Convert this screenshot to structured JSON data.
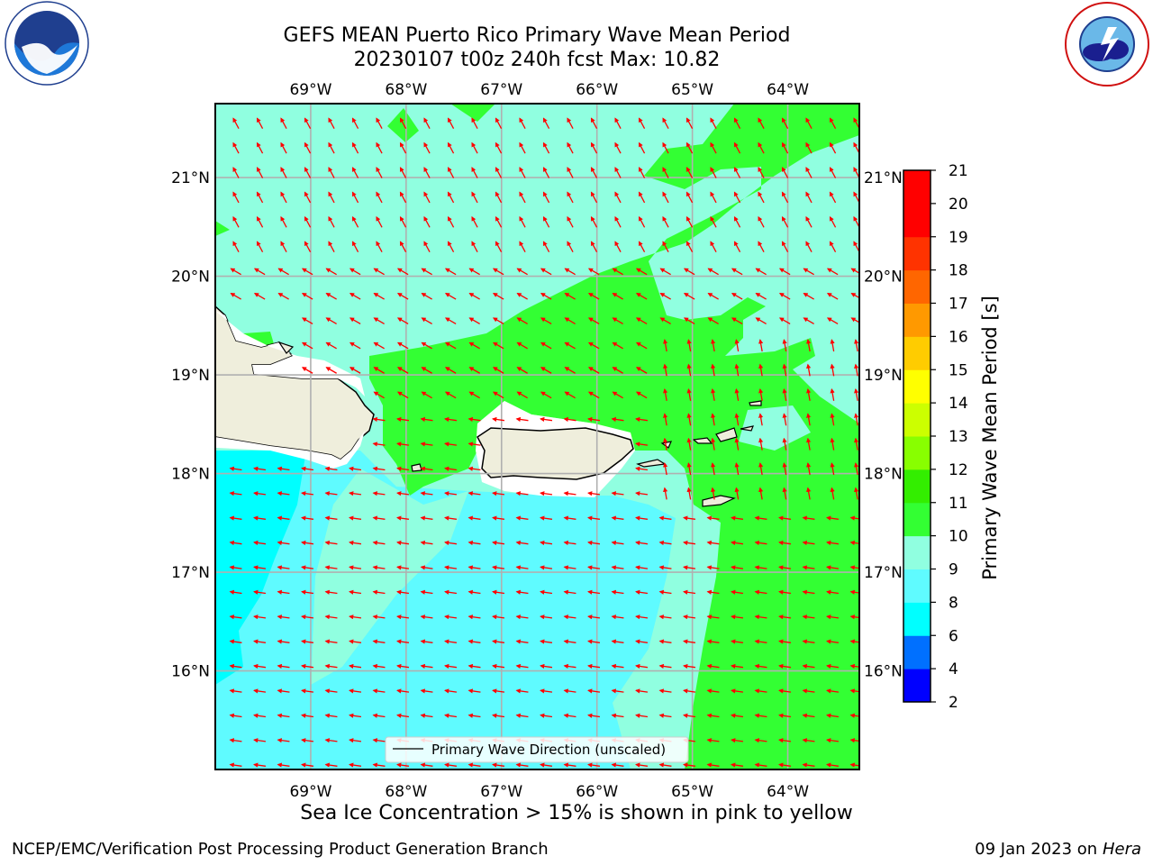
{
  "title": {
    "line1": "GEFS MEAN Puerto Rico Primary Wave Mean Period",
    "line2": "20230107 t00z 240h fcst   Max: 10.82"
  },
  "logos": {
    "left": "noaa-logo",
    "right": "national-weather-service-logo"
  },
  "chart_data": {
    "type": "heatmap",
    "field": "primary wave mean period",
    "lon_range": [
      -70.0,
      -63.25
    ],
    "lat_range": [
      15.0,
      21.75
    ],
    "lon_ticks": [
      "69°W",
      "68°W",
      "67°W",
      "66°W",
      "65°W",
      "64°W"
    ],
    "lon_tick_values": [
      -69,
      -68,
      -67,
      -66,
      -65,
      -64
    ],
    "lat_ticks": [
      "16°N",
      "17°N",
      "18°N",
      "19°N",
      "20°N",
      "21°N"
    ],
    "lat_tick_values": [
      16,
      17,
      18,
      19,
      20,
      21
    ],
    "grid": true,
    "legend": {
      "label": "Primary Wave Direction (unscaled)",
      "position": "bottom-center"
    },
    "vector_color": "#ff0000",
    "vector_direction": "toward west-northwest",
    "colorbar": {
      "label": "Primary Wave Mean Period [s]",
      "ticks": [
        "2",
        "4",
        "6",
        "8",
        "9",
        "10",
        "11",
        "12",
        "13",
        "14",
        "15",
        "16",
        "17",
        "18",
        "19",
        "20",
        "21"
      ],
      "colors": [
        "#0000ff",
        "#0070ff",
        "#00ffff",
        "#5ffbff",
        "#90ffe0",
        "#33ff33",
        "#33ee00",
        "#88ff00",
        "#ccff00",
        "#ffff00",
        "#ffcc00",
        "#ff9900",
        "#ff6600",
        "#ff3300",
        "#ff0000"
      ]
    },
    "colors": {
      "land": "#efeedc",
      "coast": "#000000",
      "period_8_9": "#5ffbff",
      "period_9_10": "#90ffe0",
      "period_10_11": "#33ff33",
      "period_6_8": "#00ffff"
    }
  },
  "caption": "Sea Ice Concentration > 15% is shown in pink to yellow",
  "footer": {
    "left": "NCEP/EMC/Verification Post Processing Product Generation Branch",
    "right_date": "09 Jan 2023 on",
    "right_host": "Hera"
  }
}
